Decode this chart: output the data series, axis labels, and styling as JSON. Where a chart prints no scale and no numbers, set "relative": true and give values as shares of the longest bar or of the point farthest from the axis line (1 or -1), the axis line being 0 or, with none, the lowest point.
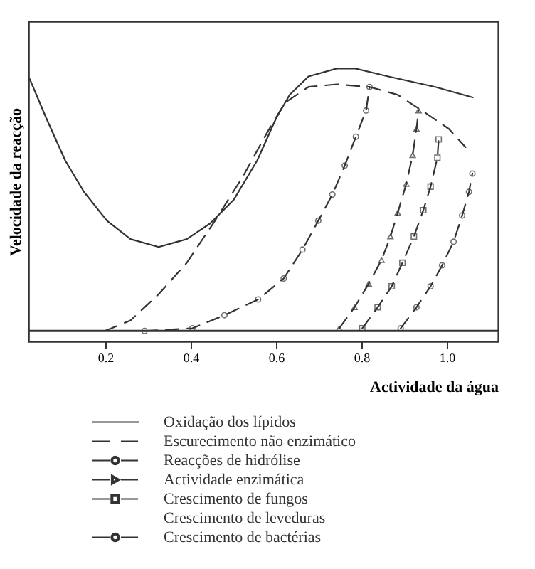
{
  "chart_data": {
    "type": "line",
    "relative": true,
    "xlabel": "Actividade da água",
    "ylabel": "Velocidade da reacção",
    "xlim": [
      0.02,
      1.12
    ],
    "xticks": [
      0.2,
      0.4,
      0.6,
      0.8,
      {
        "value": 1,
        "label": "1.0"
      }
    ],
    "tick_labels": "x",
    "grid": false,
    "legend": "bottom",
    "series": [
      {
        "name": "Oxidação dos lípidos",
        "color": "#333333",
        "line_style": "solid",
        "marker": "none",
        "x": [
          0.023,
          0.062,
          0.106,
          0.15,
          0.204,
          0.259,
          0.325,
          0.391,
          0.446,
          0.501,
          0.556,
          0.6,
          0.632,
          0.676,
          0.742,
          0.786,
          0.863,
          0.973,
          1.061
        ],
        "values": [
          0.96,
          0.81,
          0.65,
          0.53,
          0.42,
          0.35,
          0.32,
          0.35,
          0.41,
          0.5,
          0.65,
          0.81,
          0.9,
          0.97,
          1.0,
          1.0,
          0.97,
          0.93,
          0.89
        ]
      },
      {
        "name": "Escurecimento não enzimático",
        "color": "#333333",
        "line_style": "dashed",
        "marker": "none",
        "x": [
          0.199,
          0.259,
          0.325,
          0.391,
          0.457,
          0.523,
          0.577,
          0.621,
          0.676,
          0.742,
          0.819,
          0.885,
          0.951,
          1.005,
          1.044
        ],
        "values": [
          0.0,
          0.04,
          0.14,
          0.26,
          0.42,
          0.59,
          0.75,
          0.87,
          0.93,
          0.94,
          0.93,
          0.9,
          0.83,
          0.77,
          0.7
        ]
      },
      {
        "name": "Reacções de hidrólise",
        "color": "#333333",
        "line_style": "dashed",
        "marker": "circle",
        "x": [
          0.292,
          0.404,
          0.479,
          0.558,
          0.618,
          0.662,
          0.699,
          0.732,
          0.761,
          0.787,
          0.811,
          0.819
        ],
        "values": [
          0.0,
          0.01,
          0.06,
          0.12,
          0.2,
          0.31,
          0.42,
          0.52,
          0.63,
          0.74,
          0.84,
          0.93
        ]
      },
      {
        "name": "Actividade enzimática",
        "color": "#333333",
        "line_style": "dashed",
        "marker": "triangle",
        "x": [
          0.748,
          0.784,
          0.817,
          0.847,
          0.868,
          0.885,
          0.905,
          0.92,
          0.929,
          0.934
        ],
        "values": [
          0.01,
          0.09,
          0.18,
          0.27,
          0.36,
          0.45,
          0.56,
          0.67,
          0.77,
          0.84
        ]
      },
      {
        "name": "Crescimento de fungos",
        "color": "#333333",
        "line_style": "dashed",
        "marker": "square",
        "x": [
          0.802,
          0.838,
          0.871,
          0.896,
          0.923,
          0.945,
          0.962,
          0.978,
          0.981
        ],
        "values": [
          0.01,
          0.09,
          0.17,
          0.26,
          0.36,
          0.46,
          0.55,
          0.66,
          0.73
        ]
      },
      {
        "name": "Crescimento de leveduras",
        "color": "#333333",
        "line_style": "none",
        "marker": "none"
      },
      {
        "name": "Crescimento de bactérias",
        "color": "#333333",
        "line_style": "dashed",
        "marker": "circle",
        "x": [
          0.892,
          0.929,
          0.962,
          0.989,
          1.016,
          1.036,
          1.052,
          1.06
        ],
        "values": [
          0.01,
          0.09,
          0.17,
          0.25,
          0.34,
          0.44,
          0.53,
          0.6
        ]
      }
    ]
  }
}
